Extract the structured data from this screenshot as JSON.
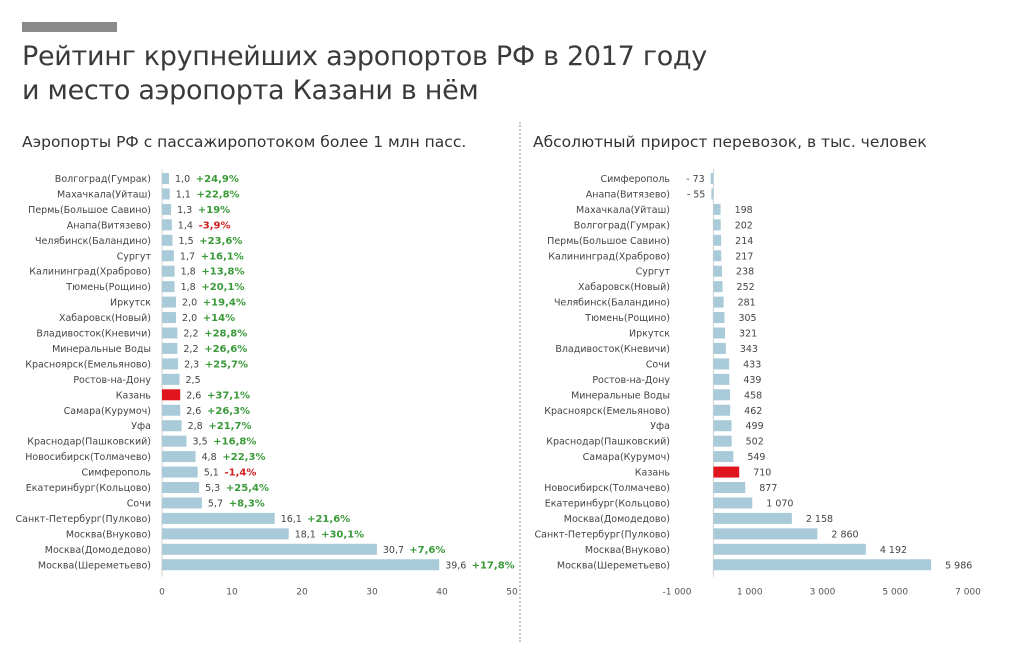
{
  "header": {
    "title_line1": "Рейтинг крупнейших аэропортов РФ в 2017 году",
    "title_line2": "и место аэропорта Казани в нём"
  },
  "colors": {
    "bar": "#a9cbd9",
    "highlight": "#e0141c",
    "positive": "#3a9a3a",
    "negative": "#d02020"
  },
  "chart_data": [
    {
      "type": "bar",
      "orientation": "horizontal",
      "title": "Аэропорты РФ с пассажиропотоком более 1 млн пасс.",
      "highlight": "Казань",
      "categories": [
        "Волгоград(Гумрак)",
        "Махачкала(Уйташ)",
        "Пермь(Большое Савино)",
        "Анапа(Витязево)",
        "Челябинск(Баландино)",
        "Сургут",
        "Калининград(Храброво)",
        "Тюмень(Рощино)",
        "Иркутск",
        "Хабаровск(Новый)",
        "Владивосток(Кневичи)",
        "Минеральные Воды",
        "Красноярск(Емельяново)",
        "Ростов-на-Дону",
        "Казань",
        "Самара(Курумоч)",
        "Уфа",
        "Краснодар(Пашковский)",
        "Новосибирск(Толмачево)",
        "Симферополь",
        "Екатеринбург(Кольцово)",
        "Сочи",
        "Санкт-Петербург(Пулково)",
        "Москва(Внуково)",
        "Москва(Домодедово)",
        "Москва(Шереметьево)"
      ],
      "values": [
        1.0,
        1.1,
        1.3,
        1.4,
        1.5,
        1.7,
        1.8,
        1.8,
        2.0,
        2.0,
        2.2,
        2.2,
        2.3,
        2.5,
        2.6,
        2.6,
        2.8,
        3.5,
        4.8,
        5.1,
        5.3,
        5.7,
        16.1,
        18.1,
        30.7,
        39.6
      ],
      "value_labels": [
        "1,0",
        "1,1",
        "1,3",
        "1,4",
        "1,5",
        "1,7",
        "1,8",
        "1,8",
        "2,0",
        "2,0",
        "2,2",
        "2,2",
        "2,3",
        "2,5",
        "2,6",
        "2,6",
        "2,8",
        "3,5",
        "4,8",
        "5,1",
        "5,3",
        "5,7",
        "16,1",
        "18,1",
        "30,7",
        "39,6"
      ],
      "growth_labels": [
        "+24,9%",
        "+22,8%",
        "+19%",
        "-3,9%",
        "+23,6%",
        "+16,1%",
        "+13,8%",
        "+20,1%",
        "+19,4%",
        "+14%",
        "+28,8%",
        "+26,6%",
        "+25,7%",
        "",
        "+37,1%",
        "+26,3%",
        "+21,7%",
        "+16,8%",
        "+22,3%",
        "-1,4%",
        "+25,4%",
        "+8,3%",
        "+21,6%",
        "+30,1%",
        "+7,6%",
        "+17,8%"
      ],
      "xlim": [
        0,
        50
      ],
      "xticks": [
        0,
        10,
        20,
        30,
        40,
        50
      ]
    },
    {
      "type": "bar",
      "orientation": "horizontal",
      "title": "Абсолютный прирост перевозок, в тыс. человек",
      "highlight": "Казань",
      "categories": [
        "Симферополь",
        "Анапа(Витязево)",
        "Махачкала(Уйташ)",
        "Волгоград(Гумрак)",
        "Пермь(Большое Савино)",
        "Калининград(Храброво)",
        "Сургут",
        "Хабаровск(Новый)",
        "Челябинск(Баландино)",
        "Тюмень(Рощино)",
        "Иркутск",
        "Владивосток(Кневичи)",
        "Сочи",
        "Ростов-на-Дону",
        "Минеральные Воды",
        "Красноярск(Емельяново)",
        "Уфа",
        "Краснодар(Пашковский)",
        "Самара(Курумоч)",
        "Казань",
        "Новосибирск(Толмачево)",
        "Екатеринбург(Кольцово)",
        "Москва(Домодедово)",
        "Санкт-Петербург(Пулково)",
        "Москва(Внуково)",
        "Москва(Шереметьево)"
      ],
      "values": [
        -73,
        -55,
        198,
        202,
        214,
        217,
        238,
        252,
        281,
        305,
        321,
        343,
        433,
        439,
        458,
        462,
        499,
        502,
        549,
        710,
        877,
        1070,
        2158,
        2860,
        4192,
        5986
      ],
      "value_labels": [
        "- 73",
        "- 55",
        "198",
        "202",
        "214",
        "217",
        "238",
        "252",
        "281",
        "305",
        "321",
        "343",
        "433",
        "439",
        "458",
        "462",
        "499",
        "502",
        "549",
        "710",
        "877",
        "1 070",
        "2 158",
        "2 860",
        "4 192",
        "5 986"
      ],
      "xlim": [
        -1000,
        7000
      ],
      "xticks": [
        -1000,
        1000,
        3000,
        5000,
        7000
      ],
      "xtick_labels": [
        "-1 000",
        "1 000",
        "3 000",
        "5 000",
        "7 000"
      ]
    }
  ]
}
